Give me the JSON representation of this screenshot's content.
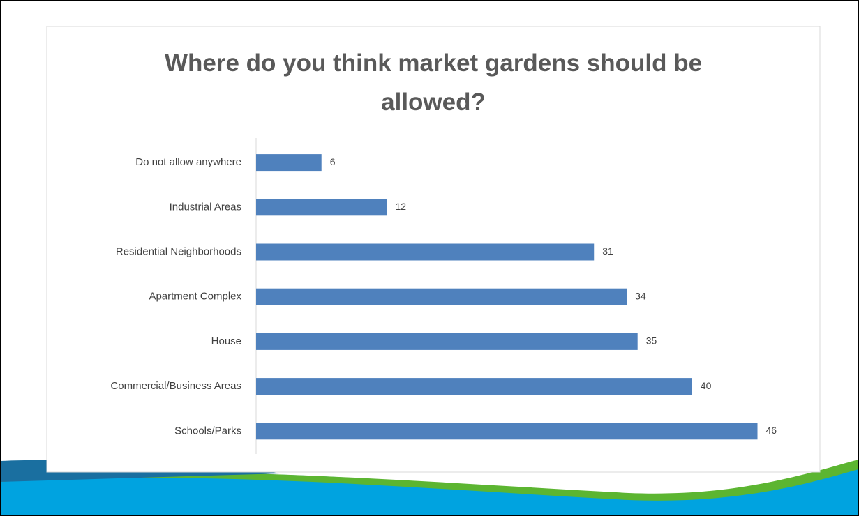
{
  "chart_data": {
    "type": "bar",
    "orientation": "horizontal",
    "title": "Where do you think market gardens should be allowed?",
    "categories": [
      "Do not allow anywhere",
      "Industrial Areas",
      "Residential Neighborhoods",
      "Apartment Complex",
      "House",
      "Commercial/Business Areas",
      "Schools/Parks"
    ],
    "values": [
      6,
      12,
      31,
      34,
      35,
      40,
      46
    ],
    "color": "#4f81bd"
  }
}
